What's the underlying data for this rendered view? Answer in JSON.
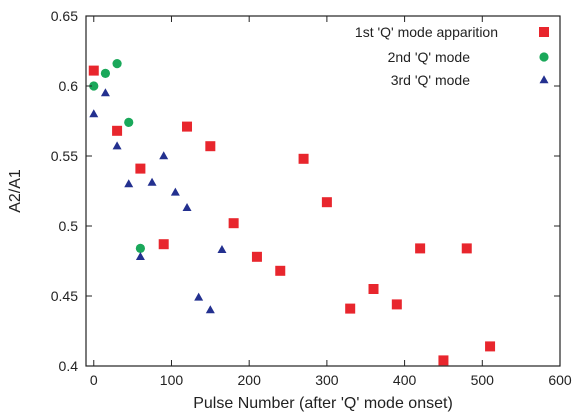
{
  "chart_data": {
    "type": "scatter",
    "title": "",
    "xlabel": "Pulse Number (after 'Q' mode onset)",
    "ylabel": "A2/A1",
    "xlim": [
      -10,
      600
    ],
    "ylim": [
      0.4,
      0.65
    ],
    "xticks": [
      "0",
      "100",
      "200",
      "300",
      "400",
      "500",
      "600"
    ],
    "yticks": [
      "0.4",
      "0.45",
      "0.5",
      "0.55",
      "0.6",
      "0.65"
    ],
    "grid": false,
    "legend_position": "top-right",
    "series": [
      {
        "name": "1st 'Q' mode apparition",
        "marker": "square",
        "color": "#e8262d",
        "points": [
          [
            0,
            0.611
          ],
          [
            30,
            0.568
          ],
          [
            60,
            0.541
          ],
          [
            90,
            0.487
          ],
          [
            120,
            0.571
          ],
          [
            150,
            0.557
          ],
          [
            180,
            0.502
          ],
          [
            210,
            0.478
          ],
          [
            240,
            0.468
          ],
          [
            270,
            0.548
          ],
          [
            300,
            0.517
          ],
          [
            330,
            0.441
          ],
          [
            360,
            0.455
          ],
          [
            390,
            0.444
          ],
          [
            420,
            0.484
          ],
          [
            450,
            0.404
          ],
          [
            480,
            0.484
          ],
          [
            510,
            0.414
          ]
        ]
      },
      {
        "name": "2nd 'Q' mode",
        "marker": "circle",
        "color": "#1aa85a",
        "points": [
          [
            0,
            0.6
          ],
          [
            15,
            0.609
          ],
          [
            30,
            0.616
          ],
          [
            45,
            0.574
          ],
          [
            60,
            0.484
          ]
        ]
      },
      {
        "name": "3rd 'Q' mode",
        "marker": "triangle",
        "color": "#23308f",
        "points": [
          [
            0,
            0.58
          ],
          [
            15,
            0.595
          ],
          [
            30,
            0.557
          ],
          [
            45,
            0.53
          ],
          [
            60,
            0.478
          ],
          [
            75,
            0.531
          ],
          [
            90,
            0.55
          ],
          [
            105,
            0.524
          ],
          [
            120,
            0.513
          ],
          [
            135,
            0.449
          ],
          [
            150,
            0.44
          ],
          [
            165,
            0.483
          ]
        ]
      }
    ]
  }
}
